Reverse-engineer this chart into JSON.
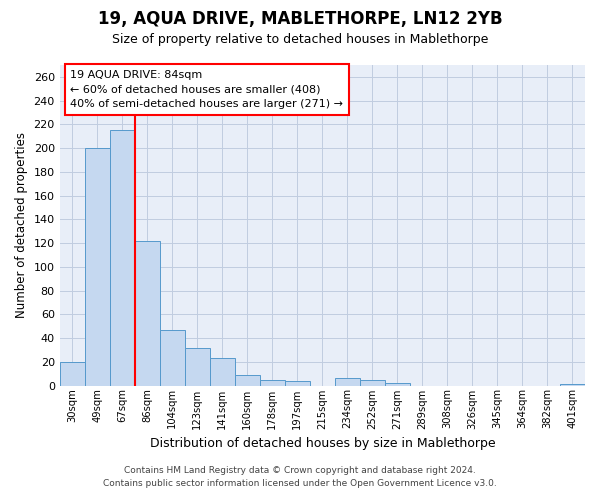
{
  "title1": "19, AQUA DRIVE, MABLETHORPE, LN12 2YB",
  "title2": "Size of property relative to detached houses in Mablethorpe",
  "xlabel": "Distribution of detached houses by size in Mablethorpe",
  "ylabel": "Number of detached properties",
  "categories": [
    "30sqm",
    "49sqm",
    "67sqm",
    "86sqm",
    "104sqm",
    "123sqm",
    "141sqm",
    "160sqm",
    "178sqm",
    "197sqm",
    "215sqm",
    "234sqm",
    "252sqm",
    "271sqm",
    "289sqm",
    "308sqm",
    "326sqm",
    "345sqm",
    "364sqm",
    "382sqm",
    "401sqm"
  ],
  "values": [
    20,
    200,
    215,
    122,
    47,
    32,
    23,
    9,
    5,
    4,
    0,
    6,
    5,
    2,
    0,
    0,
    0,
    0,
    0,
    0,
    1
  ],
  "bar_color": "#c5d8f0",
  "bar_edge_color": "#5599cc",
  "vline_x": 2.5,
  "vline_color": "red",
  "ylim": [
    0,
    270
  ],
  "yticks": [
    0,
    20,
    40,
    60,
    80,
    100,
    120,
    140,
    160,
    180,
    200,
    220,
    240,
    260
  ],
  "annotation_title": "19 AQUA DRIVE: 84sqm",
  "annotation_line1": "← 60% of detached houses are smaller (408)",
  "annotation_line2": "40% of semi-detached houses are larger (271) →",
  "ann_edge_color": "red",
  "footer1": "Contains HM Land Registry data © Crown copyright and database right 2024.",
  "footer2": "Contains public sector information licensed under the Open Government Licence v3.0.",
  "bg_color": "#e8eef8",
  "grid_color": "#c0cce0"
}
